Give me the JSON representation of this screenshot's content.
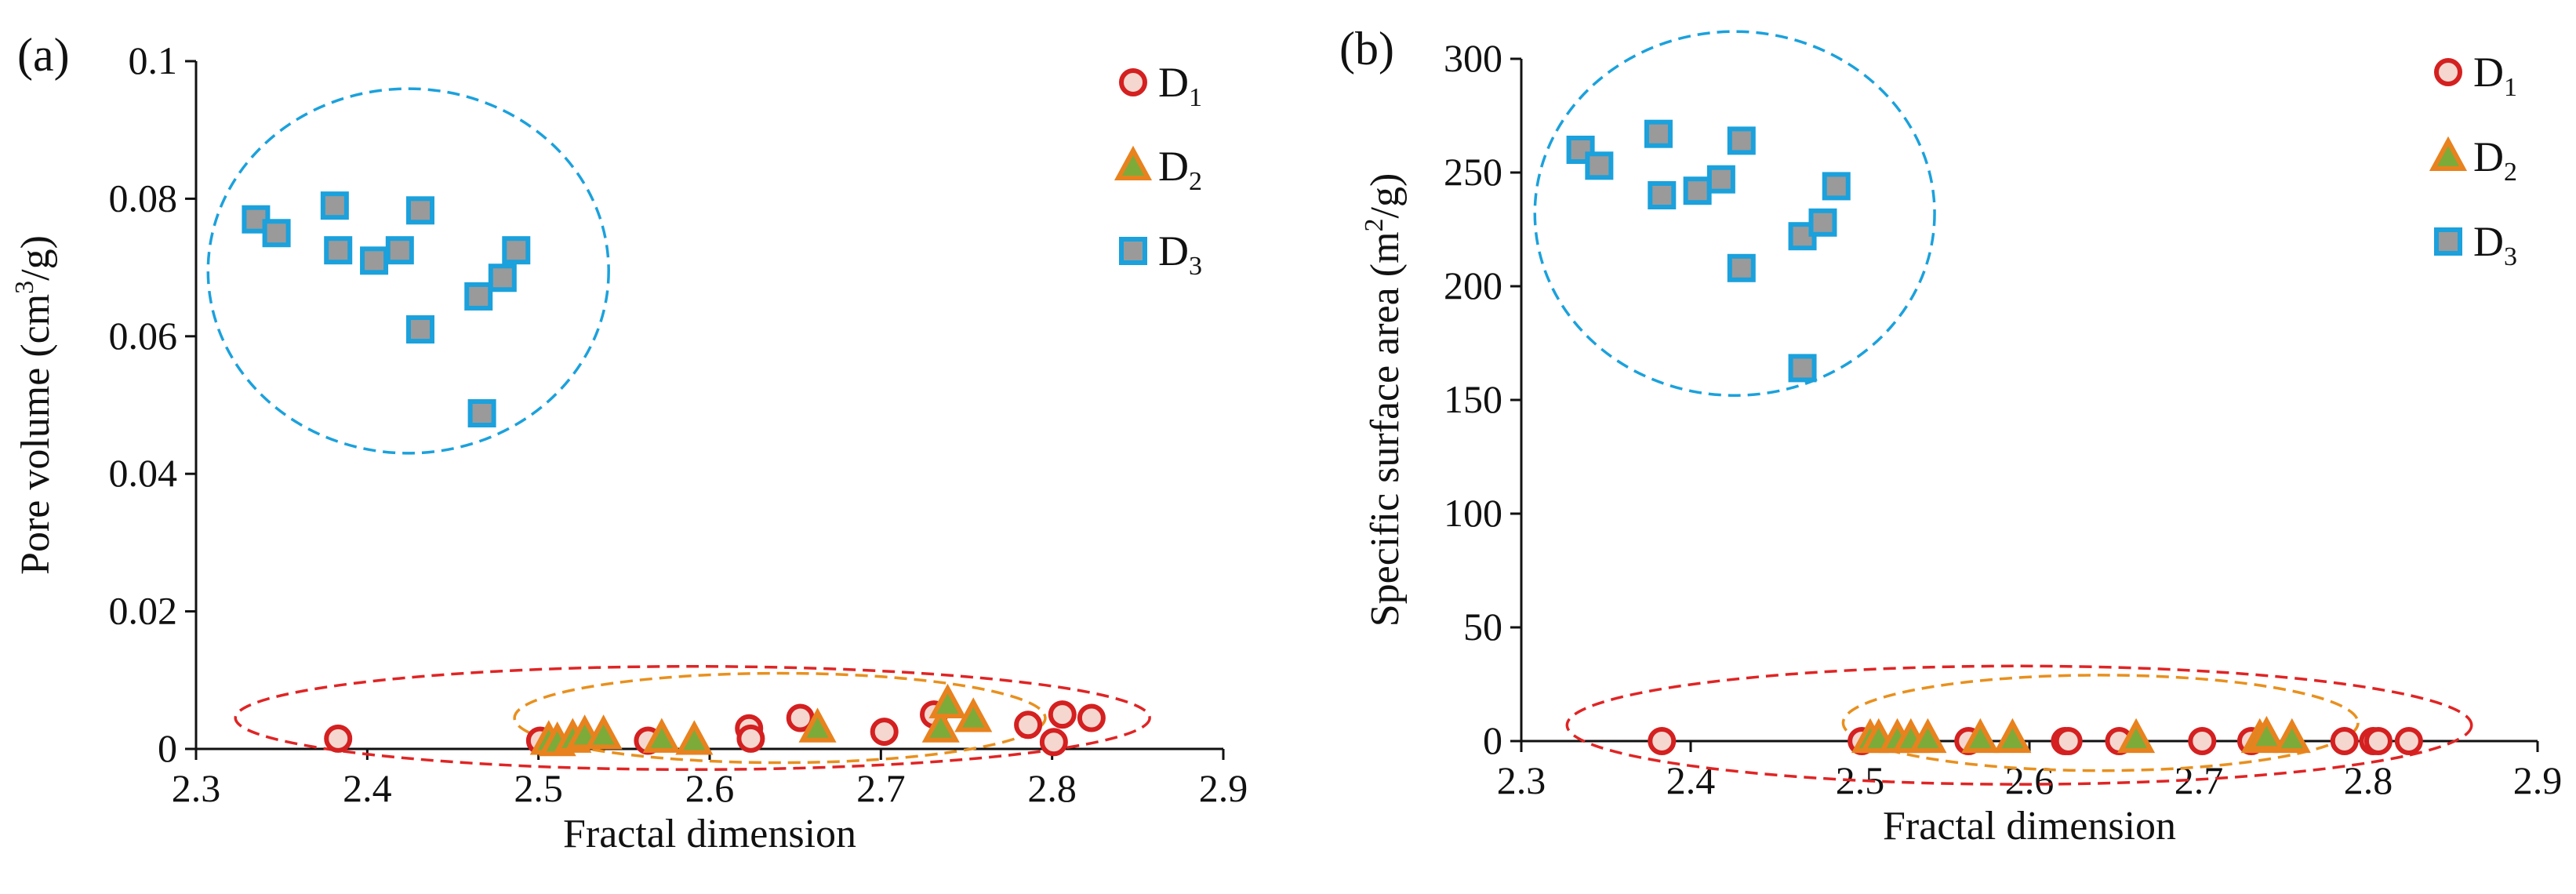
{
  "figure": {
    "type": "scatter-panels"
  },
  "legend": [
    {
      "name": "D",
      "sub": "1",
      "marker": "circle"
    },
    {
      "name": "D",
      "sub": "2",
      "marker": "triangle"
    },
    {
      "name": "D",
      "sub": "3",
      "marker": "square"
    }
  ],
  "colors": {
    "D1_fill": "#f6d7cf",
    "D1_stroke": "#d42020",
    "D2_fill": "#7cab3a",
    "D2_stroke": "#e8821e",
    "D3_fill": "#9a9a9a",
    "D3_stroke": "#1ba1dc",
    "ellipse_red": "#e02424",
    "ellipse_orange": "#e8901e",
    "ellipse_blue": "#1ba1dc",
    "axis": "#111111"
  },
  "chart_data": [
    {
      "type": "scatter",
      "panel_label": "(a)",
      "xlabel": "Fractal dimension",
      "ylabel": {
        "pre": "Pore volume (cm",
        "sup": "3",
        "post": "/g)"
      },
      "xlim": [
        2.3,
        2.9
      ],
      "ylim": [
        0,
        0.1
      ],
      "xticks": [
        "2.3",
        "2.4",
        "2.5",
        "2.6",
        "2.7",
        "2.8",
        "2.9"
      ],
      "yticks": [
        "0",
        "0.02",
        "0.04",
        "0.06",
        "0.08",
        "0.1"
      ],
      "series": [
        {
          "name": "D1",
          "x": [
            2.383,
            2.501,
            2.564,
            2.623,
            2.624,
            2.653,
            2.702,
            2.731,
            2.786,
            2.801,
            2.806,
            2.823
          ],
          "y": [
            0.0015,
            0.0012,
            0.0012,
            0.003,
            0.0015,
            0.0045,
            0.0025,
            0.005,
            0.0035,
            0.001,
            0.005,
            0.0045
          ]
        },
        {
          "name": "D2",
          "x": [
            2.506,
            2.511,
            2.52,
            2.527,
            2.538,
            2.572,
            2.591,
            2.663,
            2.735,
            2.739,
            2.754
          ],
          "y": [
            0.0012,
            0.001,
            0.0015,
            0.002,
            0.002,
            0.0015,
            0.0012,
            0.003,
            0.003,
            0.0065,
            0.0045
          ]
        },
        {
          "name": "D3",
          "x": [
            2.335,
            2.347,
            2.381,
            2.383,
            2.404,
            2.419,
            2.431,
            2.431,
            2.465,
            2.467,
            2.479,
            2.487
          ],
          "y": [
            0.077,
            0.075,
            0.079,
            0.0725,
            0.071,
            0.0725,
            0.0783,
            0.061,
            0.0658,
            0.0488,
            0.0685,
            0.0725
          ]
        }
      ],
      "ellipses": [
        {
          "series": "D1",
          "cx": 2.59,
          "cy": 0.0045,
          "rx": 0.267,
          "ry": 0.0075
        },
        {
          "series": "D2",
          "cx": 2.641,
          "cy": 0.0045,
          "rx": 0.155,
          "ry": 0.0065
        },
        {
          "series": "D3",
          "cx": 2.424,
          "cy": 0.0695,
          "rx": 0.117,
          "ry": 0.0265
        }
      ]
    },
    {
      "type": "scatter",
      "panel_label": "(b)",
      "xlabel": "Fractal dimension",
      "ylabel": {
        "pre": "Specific surface area (m",
        "sup": "2",
        "post": "/g)"
      },
      "xlim": [
        2.3,
        2.9
      ],
      "ylim": [
        0,
        300
      ],
      "xticks": [
        "2.3",
        "2.4",
        "2.5",
        "2.6",
        "2.7",
        "2.8",
        "2.9"
      ],
      "yticks": [
        "0",
        "50",
        "100",
        "150",
        "200",
        "250",
        "300"
      ],
      "series": [
        {
          "name": "D1",
          "x": [
            2.383,
            2.501,
            2.564,
            2.621,
            2.623,
            2.653,
            2.702,
            2.731,
            2.786,
            2.803,
            2.806,
            2.824
          ],
          "y": [
            0,
            0,
            0,
            0,
            0,
            0,
            0,
            0,
            0,
            0,
            0,
            0
          ]
        },
        {
          "name": "D2",
          "x": [
            2.506,
            2.511,
            2.522,
            2.53,
            2.54,
            2.571,
            2.59,
            2.663,
            2.736,
            2.74,
            2.755
          ],
          "y": [
            1,
            1,
            1,
            1,
            1,
            1,
            1,
            1,
            1,
            2,
            1
          ]
        },
        {
          "name": "D3",
          "x": [
            2.335,
            2.346,
            2.381,
            2.383,
            2.404,
            2.418,
            2.43,
            2.43,
            2.466,
            2.466,
            2.478,
            2.486
          ],
          "y": [
            260,
            253,
            267,
            240,
            242,
            247,
            264,
            208,
            222,
            164,
            228,
            244
          ]
        }
      ],
      "ellipses": [
        {
          "series": "D1",
          "cx": 2.594,
          "cy": 7,
          "rx": 0.267,
          "ry": 26
        },
        {
          "series": "D2",
          "cx": 2.642,
          "cy": 8,
          "rx": 0.152,
          "ry": 21
        },
        {
          "series": "D3",
          "cx": 2.426,
          "cy": 232,
          "rx": 0.118,
          "ry": 80
        }
      ]
    }
  ]
}
